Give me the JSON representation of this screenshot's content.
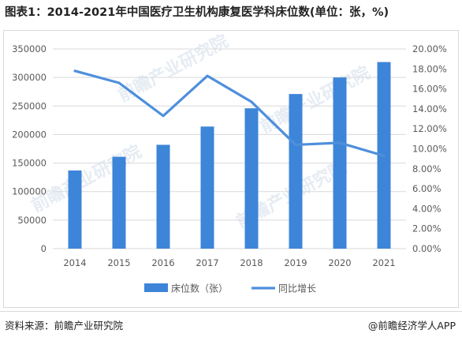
{
  "title": "图表1：2014-2021年中国医疗卫生机构康复医学科床位数(单位：张，%)",
  "footer": {
    "source": "资料来源：前瞻产业研究院",
    "credit": "@前瞻经济学人APP"
  },
  "watermark": {
    "text": "前瞻产业研究院"
  },
  "colors": {
    "bar": "#3d85d8",
    "line": "#4e8fdc",
    "grid": "#d9d9d9",
    "text": "#595959"
  },
  "chart_data": {
    "type": "bar",
    "categories": [
      "2014",
      "2015",
      "2016",
      "2017",
      "2018",
      "2019",
      "2020",
      "2021"
    ],
    "series": [
      {
        "name": "床位数（张）",
        "type": "bar",
        "axis": "left",
        "values": [
          137000,
          161000,
          182000,
          214000,
          246000,
          271000,
          300000,
          327000
        ]
      },
      {
        "name": "同比增长",
        "type": "line",
        "axis": "right",
        "values": [
          17.8,
          16.6,
          13.3,
          17.3,
          14.7,
          10.4,
          10.6,
          9.3
        ]
      }
    ],
    "y_left": {
      "min": 0,
      "max": 350000,
      "ticks": [
        "0",
        "50000",
        "100000",
        "150000",
        "200000",
        "250000",
        "300000",
        "350000"
      ]
    },
    "y_right": {
      "min": 0,
      "max": 20,
      "ticks": [
        "0.00%",
        "2.00%",
        "4.00%",
        "6.00%",
        "8.00%",
        "10.00%",
        "12.00%",
        "14.00%",
        "16.00%",
        "18.00%",
        "20.00%"
      ]
    },
    "grid": "horizontal",
    "legend_position": "bottom"
  }
}
